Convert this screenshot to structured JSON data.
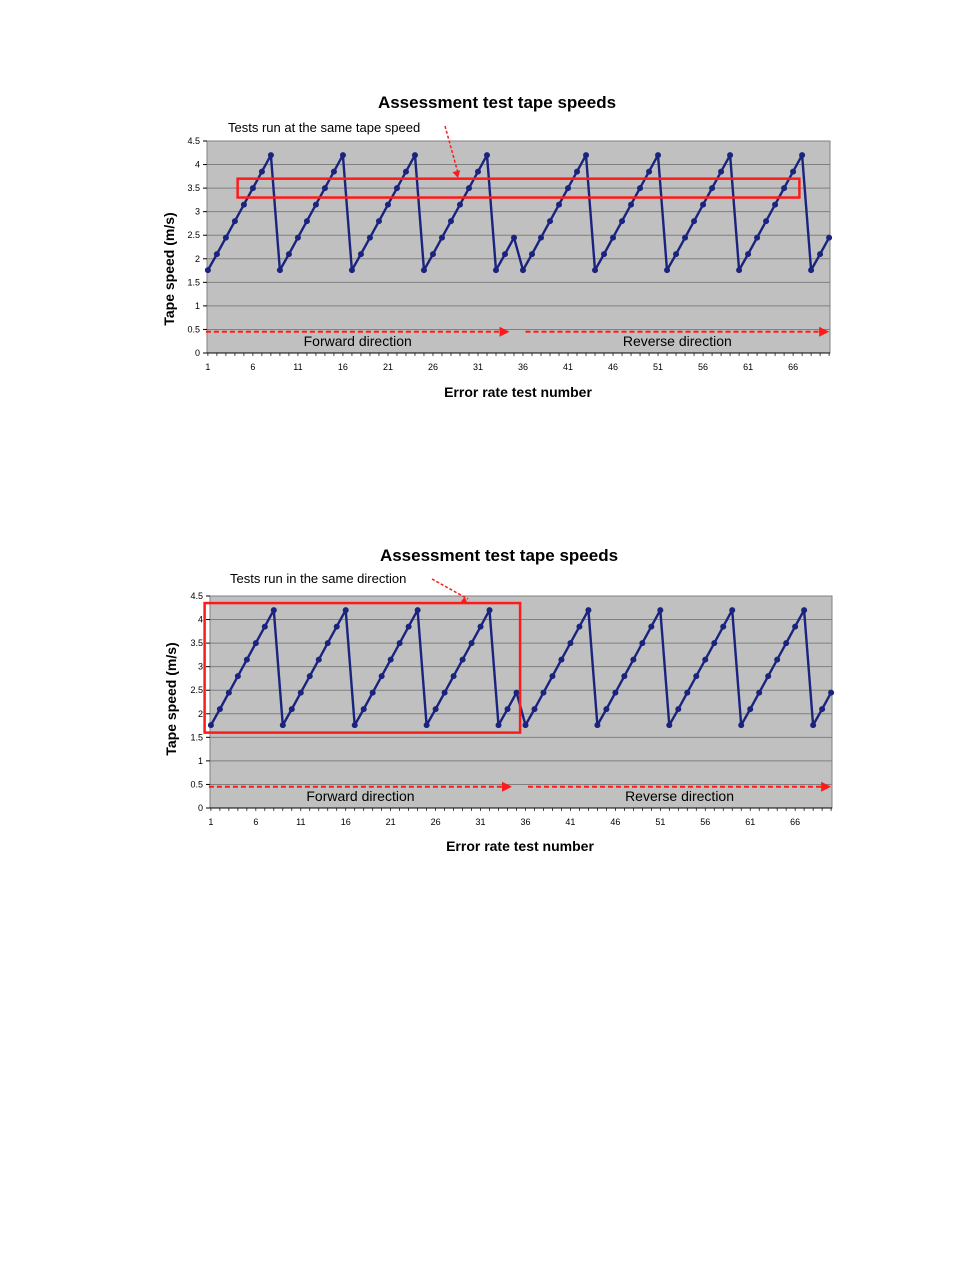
{
  "colors": {
    "plot_background": "#c0c0c0",
    "series": "#1a237e",
    "highlight": "#ff1a1a",
    "gridline": "#808080"
  },
  "chart_data": [
    {
      "type": "line",
      "title": "Assessment test tape speeds",
      "xlabel": "Error rate test number",
      "ylabel": "Tape speed (m/s)",
      "ylim": [
        0,
        4.5
      ],
      "y_ticks": [
        "0",
        "0.5",
        "1",
        "1.5",
        "2",
        "2.5",
        "3",
        "3.5",
        "4",
        "4.5"
      ],
      "x_ticks": [
        "1",
        "6",
        "11",
        "16",
        "21",
        "26",
        "31",
        "36",
        "41",
        "46",
        "51",
        "56",
        "61",
        "66"
      ],
      "x_range": [
        1,
        70
      ],
      "grid": true,
      "annotation": "Tests run at the same tape speed",
      "highlight": {
        "kind": "speed-band",
        "y_range": [
          3.3,
          3.7
        ],
        "x_range": [
          4.3,
          66.7
        ]
      },
      "direction_labels": [
        {
          "label": "Forward direction",
          "from": 1,
          "to": 34.5,
          "y": 0.45
        },
        {
          "label": "Reverse direction",
          "from": 36.5,
          "to": 70,
          "y": 0.45
        }
      ],
      "series": [
        {
          "name": "Tape speed",
          "x": [
            1,
            2,
            3,
            4,
            5,
            6,
            7,
            8,
            9,
            10,
            11,
            12,
            13,
            14,
            15,
            16,
            17,
            18,
            19,
            20,
            21,
            22,
            23,
            24,
            25,
            26,
            27,
            28,
            29,
            30,
            31,
            32,
            33,
            34,
            35,
            36,
            37,
            38,
            39,
            40,
            41,
            42,
            43,
            44,
            45,
            46,
            47,
            48,
            49,
            50,
            51,
            52,
            53,
            54,
            55,
            56,
            57,
            58,
            59,
            60,
            61,
            62,
            63,
            64,
            65,
            66,
            67,
            68,
            69,
            70
          ],
          "values": [
            1.76,
            2.1,
            2.45,
            2.8,
            3.15,
            3.5,
            3.85,
            4.2,
            1.76,
            2.1,
            2.45,
            2.8,
            3.15,
            3.5,
            3.85,
            4.2,
            1.76,
            2.1,
            2.45,
            2.8,
            3.15,
            3.5,
            3.85,
            4.2,
            1.76,
            2.1,
            2.45,
            2.8,
            3.15,
            3.5,
            3.85,
            4.2,
            1.76,
            2.1,
            2.45,
            1.76,
            2.1,
            2.45,
            2.8,
            3.15,
            3.5,
            3.85,
            4.2,
            1.76,
            2.1,
            2.45,
            2.8,
            3.15,
            3.5,
            3.85,
            4.2,
            1.76,
            2.1,
            2.45,
            2.8,
            3.15,
            3.5,
            3.85,
            4.2,
            1.76,
            2.1,
            2.45,
            2.8,
            3.15,
            3.5,
            3.85,
            4.2,
            1.76,
            2.1,
            2.45
          ]
        }
      ]
    },
    {
      "type": "line",
      "title": "Assessment test tape speeds",
      "xlabel": "Error rate test number",
      "ylabel": "Tape speed (m/s)",
      "ylim": [
        0,
        4.5
      ],
      "y_ticks": [
        "0",
        "0.5",
        "1",
        "1.5",
        "2",
        "2.5",
        "3",
        "3.5",
        "4",
        "4.5"
      ],
      "x_ticks": [
        "1",
        "6",
        "11",
        "16",
        "21",
        "26",
        "31",
        "36",
        "41",
        "46",
        "51",
        "56",
        "61",
        "66"
      ],
      "x_range": [
        1,
        70
      ],
      "grid": true,
      "annotation": "Tests run in the same direction",
      "highlight": {
        "kind": "direction-block",
        "y_range": [
          1.6,
          4.35
        ],
        "x_range": [
          0.3,
          35.4
        ]
      },
      "direction_labels": [
        {
          "label": "Forward direction",
          "from": 1,
          "to": 34.5,
          "y": 0.45
        },
        {
          "label": "Reverse direction",
          "from": 36.5,
          "to": 70,
          "y": 0.45
        }
      ],
      "series": [
        {
          "name": "Tape speed",
          "x": [
            1,
            2,
            3,
            4,
            5,
            6,
            7,
            8,
            9,
            10,
            11,
            12,
            13,
            14,
            15,
            16,
            17,
            18,
            19,
            20,
            21,
            22,
            23,
            24,
            25,
            26,
            27,
            28,
            29,
            30,
            31,
            32,
            33,
            34,
            35,
            36,
            37,
            38,
            39,
            40,
            41,
            42,
            43,
            44,
            45,
            46,
            47,
            48,
            49,
            50,
            51,
            52,
            53,
            54,
            55,
            56,
            57,
            58,
            59,
            60,
            61,
            62,
            63,
            64,
            65,
            66,
            67,
            68,
            69,
            70
          ],
          "values": [
            1.76,
            2.1,
            2.45,
            2.8,
            3.15,
            3.5,
            3.85,
            4.2,
            1.76,
            2.1,
            2.45,
            2.8,
            3.15,
            3.5,
            3.85,
            4.2,
            1.76,
            2.1,
            2.45,
            2.8,
            3.15,
            3.5,
            3.85,
            4.2,
            1.76,
            2.1,
            2.45,
            2.8,
            3.15,
            3.5,
            3.85,
            4.2,
            1.76,
            2.1,
            2.45,
            1.76,
            2.1,
            2.45,
            2.8,
            3.15,
            3.5,
            3.85,
            4.2,
            1.76,
            2.1,
            2.45,
            2.8,
            3.15,
            3.5,
            3.85,
            4.2,
            1.76,
            2.1,
            2.45,
            2.8,
            3.15,
            3.5,
            3.85,
            4.2,
            1.76,
            2.1,
            2.45,
            2.8,
            3.15,
            3.5,
            3.85,
            4.2,
            1.76,
            2.1,
            2.45
          ]
        }
      ]
    }
  ]
}
